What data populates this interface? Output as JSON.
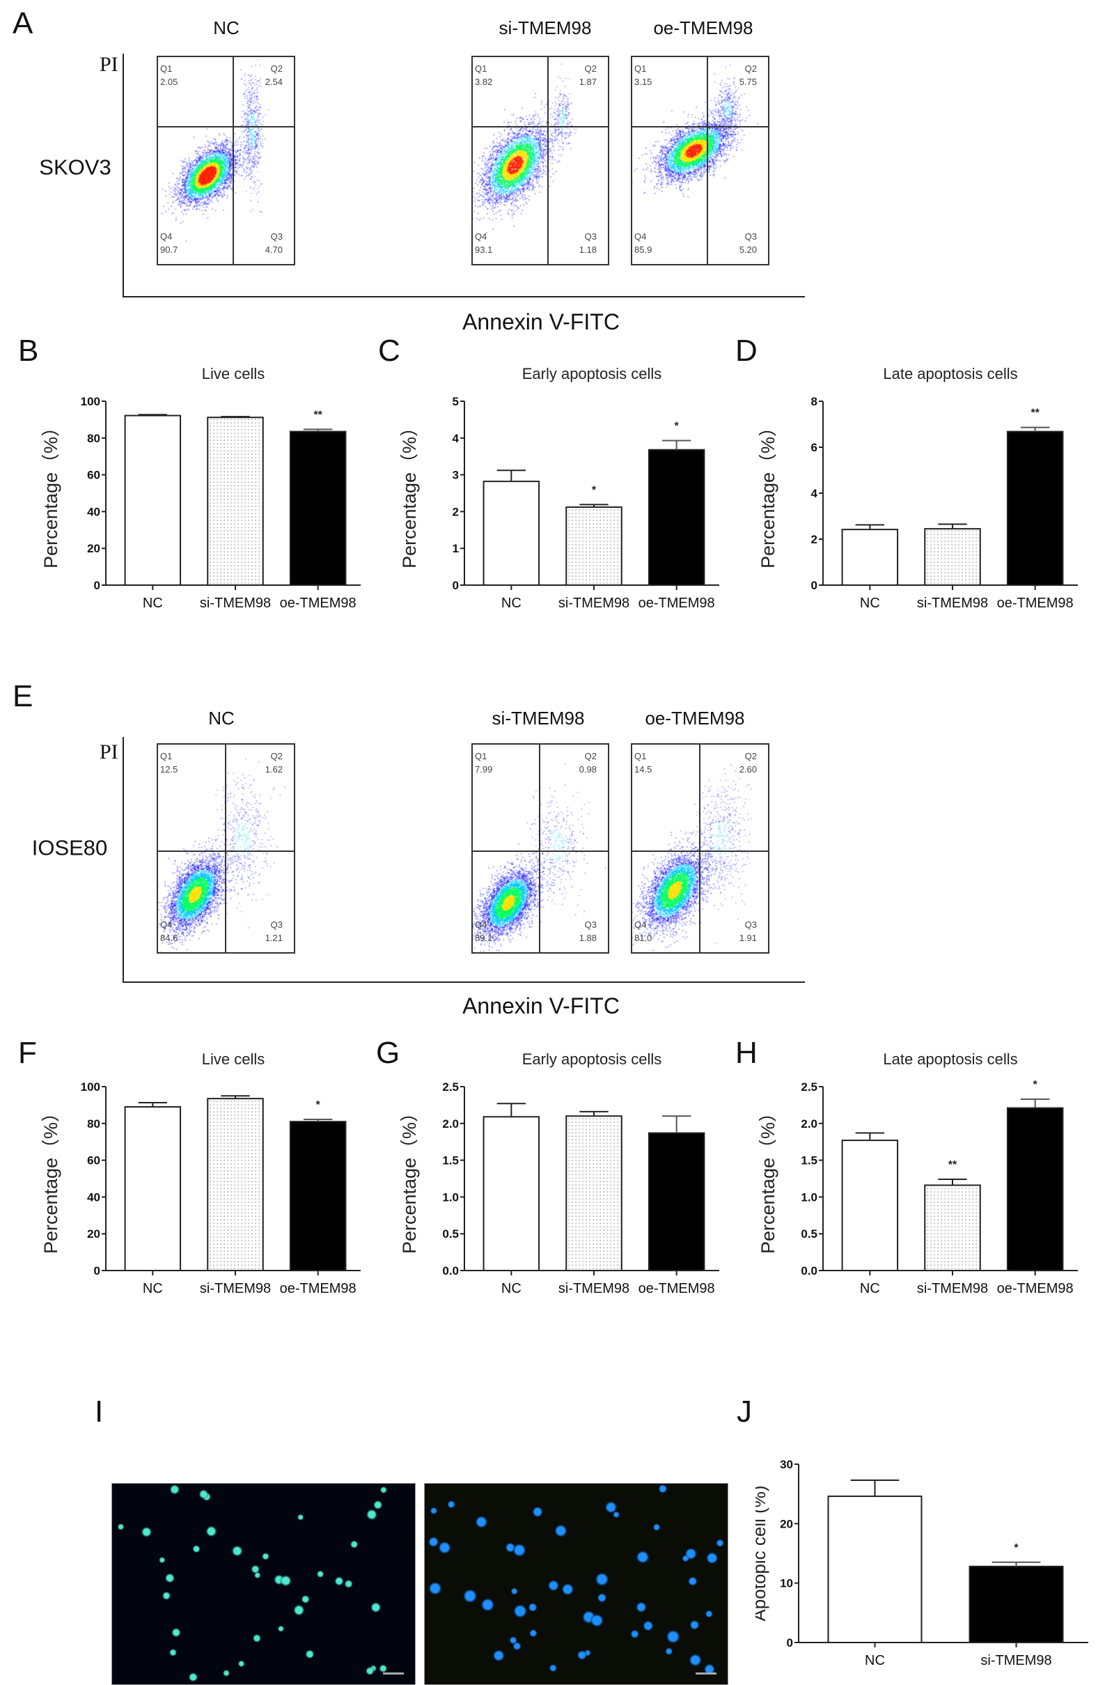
{
  "figure": {
    "panels": {
      "A": "A",
      "B": "B",
      "C": "C",
      "D": "D",
      "E": "E",
      "F": "F",
      "G": "G",
      "H": "H",
      "I": "I",
      "J": "J"
    },
    "groups": [
      "NC",
      "si-TMEM98",
      "oe-TMEM98"
    ],
    "flow_y_axis_label": "PI",
    "flow_x_axis_label": "Annexin V-FITC",
    "density_colors": [
      "#0000ff",
      "#00c8ff",
      "#00ff60",
      "#ffe000",
      "#ff2000"
    ],
    "flow_A": {
      "cell_line": "SKOV3",
      "plots": [
        {
          "group": "NC",
          "quadrants": {
            "Q1": {
              "label": "Q1",
              "value": "2.05"
            },
            "Q2": {
              "label": "Q2",
              "value": "2.54"
            },
            "Q3": {
              "label": "Q3",
              "value": "4.70"
            },
            "Q4": {
              "label": "Q4",
              "value": "90.7"
            }
          }
        },
        {
          "group": "si-TMEM98",
          "quadrants": {
            "Q1": {
              "label": "Q1",
              "value": "3.82"
            },
            "Q2": {
              "label": "Q2",
              "value": "1.87"
            },
            "Q3": {
              "label": "Q3",
              "value": "1.18"
            },
            "Q4": {
              "label": "Q4",
              "value": "93.1"
            }
          }
        },
        {
          "group": "oe-TMEM98",
          "quadrants": {
            "Q1": {
              "label": "Q1",
              "value": "3.15"
            },
            "Q2": {
              "label": "Q2",
              "value": "5.75"
            },
            "Q3": {
              "label": "Q3",
              "value": "5.20"
            },
            "Q4": {
              "label": "Q4",
              "value": "85.9"
            }
          }
        }
      ]
    },
    "flow_E": {
      "cell_line": "IOSE80",
      "plots": [
        {
          "group": "NC",
          "quadrants": {
            "Q1": {
              "label": "Q1",
              "value": "12.5"
            },
            "Q2": {
              "label": "Q2",
              "value": "1.62"
            },
            "Q3": {
              "label": "Q3",
              "value": "1.21"
            },
            "Q4": {
              "label": "Q4",
              "value": "84.6"
            }
          }
        },
        {
          "group": "si-TMEM98",
          "quadrants": {
            "Q1": {
              "label": "Q1",
              "value": "7.99"
            },
            "Q2": {
              "label": "Q2",
              "value": "0.98"
            },
            "Q3": {
              "label": "Q3",
              "value": "1.88"
            },
            "Q4": {
              "label": "Q4",
              "value": "89.1"
            }
          }
        },
        {
          "group": "oe-TMEM98",
          "quadrants": {
            "Q1": {
              "label": "Q1",
              "value": "14.5"
            },
            "Q2": {
              "label": "Q2",
              "value": "2.60"
            },
            "Q3": {
              "label": "Q3",
              "value": "1.91"
            },
            "Q4": {
              "label": "Q4",
              "value": "81.0"
            }
          }
        }
      ]
    },
    "microscopy_I": {
      "images": [
        {
          "description": "fluorescence microscopy, NC",
          "nuclei_color": "#4ee8d0"
        },
        {
          "description": "fluorescence microscopy, si-TMEM98",
          "nuclei_color": "#1e90ff"
        }
      ]
    }
  },
  "chart_data": [
    {
      "id": "B",
      "type": "bar",
      "title": "Live cells",
      "categories": [
        "NC",
        "si-TMEM98",
        "oe-TMEM98"
      ],
      "values": [
        92.2,
        91.2,
        83.5
      ],
      "errors": [
        0.5,
        0.4,
        1.2
      ],
      "significance": [
        "",
        "",
        "**"
      ],
      "fills": [
        "white",
        "dotted",
        "black"
      ],
      "ylabel": "Percentage（%）",
      "ylim": [
        0,
        100
      ],
      "yticks": [
        "0",
        "20",
        "40",
        "60",
        "80",
        "100"
      ],
      "ytick_values": [
        0,
        20,
        40,
        60,
        80,
        100
      ]
    },
    {
      "id": "C",
      "type": "bar",
      "title": "Early apoptosis cells",
      "categories": [
        "NC",
        "si-TMEM98",
        "oe-TMEM98"
      ],
      "values": [
        2.82,
        2.12,
        3.68
      ],
      "errors": [
        0.3,
        0.07,
        0.25
      ],
      "significance": [
        "",
        "*",
        "*"
      ],
      "fills": [
        "white",
        "dotted",
        "black"
      ],
      "ylabel": "Percentage（%）",
      "ylim": [
        0,
        5
      ],
      "yticks": [
        "0",
        "1",
        "2",
        "3",
        "4",
        "5"
      ],
      "ytick_values": [
        0,
        1,
        2,
        3,
        4,
        5
      ]
    },
    {
      "id": "D",
      "type": "bar",
      "title": "Late apoptosis cells",
      "categories": [
        "NC",
        "si-TMEM98",
        "oe-TMEM98"
      ],
      "values": [
        2.42,
        2.45,
        6.68
      ],
      "errors": [
        0.2,
        0.2,
        0.18
      ],
      "significance": [
        "",
        "",
        "**"
      ],
      "fills": [
        "white",
        "dotted",
        "black"
      ],
      "ylabel": "Percentage（%）",
      "ylim": [
        0,
        8
      ],
      "yticks": [
        "0",
        "2",
        "4",
        "6",
        "8"
      ],
      "ytick_values": [
        0,
        2,
        4,
        6,
        8
      ]
    },
    {
      "id": "F",
      "type": "bar",
      "title": "Live cells",
      "categories": [
        "NC",
        "si-TMEM98",
        "oe-TMEM98"
      ],
      "values": [
        89.0,
        93.5,
        81.0
      ],
      "errors": [
        2.3,
        1.5,
        1.2
      ],
      "significance": [
        "",
        "",
        "*"
      ],
      "fills": [
        "white",
        "dotted",
        "black"
      ],
      "ylabel": "Percentage（%）",
      "ylim": [
        0,
        100
      ],
      "yticks": [
        "0",
        "20",
        "40",
        "60",
        "80",
        "100"
      ],
      "ytick_values": [
        0,
        20,
        40,
        60,
        80,
        100
      ]
    },
    {
      "id": "G",
      "type": "bar",
      "title": "Early apoptosis cells",
      "categories": [
        "NC",
        "si-TMEM98",
        "oe-TMEM98"
      ],
      "values": [
        2.09,
        2.1,
        1.87
      ],
      "errors": [
        0.18,
        0.06,
        0.23
      ],
      "significance": [
        "",
        "",
        ""
      ],
      "fills": [
        "white",
        "dotted",
        "black"
      ],
      "ylabel": "Percentage（%）",
      "ylim": [
        0,
        2.5
      ],
      "yticks": [
        "0.0",
        "0.5",
        "1.0",
        "1.5",
        "2.0",
        "2.5"
      ],
      "ytick_values": [
        0,
        0.5,
        1.0,
        1.5,
        2.0,
        2.5
      ]
    },
    {
      "id": "H",
      "type": "bar",
      "title": "Late apoptosis cells",
      "categories": [
        "NC",
        "si-TMEM98",
        "oe-TMEM98"
      ],
      "values": [
        1.77,
        1.16,
        2.21
      ],
      "errors": [
        0.1,
        0.08,
        0.12
      ],
      "significance": [
        "",
        "**",
        "*"
      ],
      "fills": [
        "white",
        "dotted",
        "black"
      ],
      "ylabel": "Percentage（%）",
      "ylim": [
        0,
        2.5
      ],
      "yticks": [
        "0.0",
        "0.5",
        "1.0",
        "1.5",
        "2.0",
        "2.5"
      ],
      "ytick_values": [
        0,
        0.5,
        1.0,
        1.5,
        2.0,
        2.5
      ]
    },
    {
      "id": "J",
      "type": "bar",
      "title": "",
      "categories": [
        "NC",
        "si-TMEM98"
      ],
      "values": [
        24.6,
        12.8
      ],
      "errors": [
        2.7,
        0.7
      ],
      "significance": [
        "",
        "*"
      ],
      "fills": [
        "white",
        "black"
      ],
      "ylabel": "Apotopic cell (%)",
      "ylim": [
        0,
        30
      ],
      "yticks": [
        "0",
        "10",
        "20",
        "30"
      ],
      "ytick_values": [
        0,
        10,
        20,
        30
      ]
    }
  ]
}
